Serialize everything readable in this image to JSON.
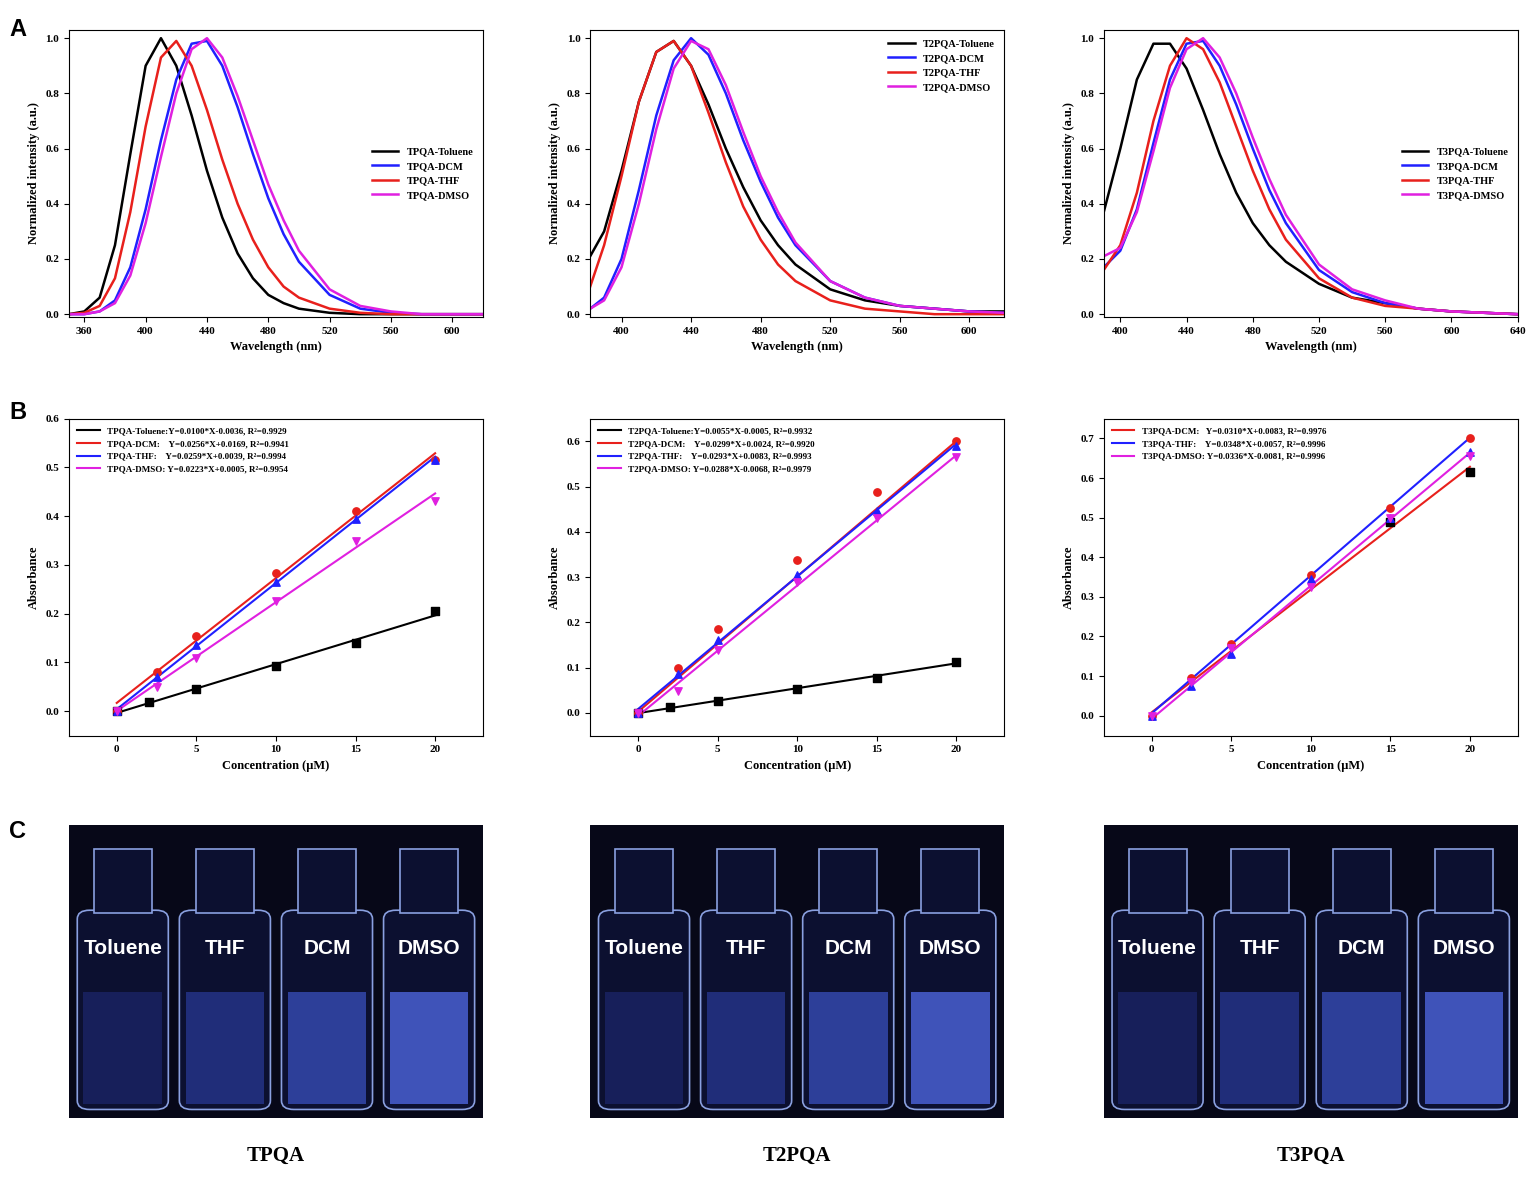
{
  "panel_labels": [
    "A",
    "B",
    "C"
  ],
  "chart_data": [
    {
      "type": "line",
      "x_label": "Wavelength (nm)",
      "y_label": "Normalized intensity (a.u.)",
      "xlim": [
        350,
        620
      ],
      "xticks": [
        360,
        400,
        440,
        480,
        520,
        560,
        600
      ],
      "ylim": [
        -0.01,
        1.03
      ],
      "yticks": [
        0.0,
        0.2,
        0.4,
        0.6,
        0.8,
        1.0
      ],
      "legend": "center right",
      "x": [
        350,
        360,
        370,
        380,
        390,
        400,
        410,
        420,
        430,
        440,
        450,
        460,
        470,
        480,
        490,
        500,
        520,
        540,
        560,
        580,
        600,
        620
      ],
      "series": [
        {
          "name": "TPQA-Toluene",
          "color": "#000000",
          "values": [
            0,
            0.01,
            0.06,
            0.25,
            0.58,
            0.9,
            1.0,
            0.9,
            0.72,
            0.52,
            0.35,
            0.22,
            0.13,
            0.07,
            0.04,
            0.02,
            0.005,
            0,
            0,
            0,
            0,
            0
          ]
        },
        {
          "name": "TPQA-DCM",
          "color": "#2020ff",
          "values": [
            0,
            0,
            0.01,
            0.05,
            0.17,
            0.38,
            0.63,
            0.85,
            0.98,
            0.99,
            0.9,
            0.75,
            0.58,
            0.42,
            0.29,
            0.19,
            0.07,
            0.02,
            0.005,
            0,
            0,
            0
          ]
        },
        {
          "name": "TPQA-THF",
          "color": "#e8201c",
          "values": [
            0,
            0.005,
            0.03,
            0.13,
            0.37,
            0.68,
            0.93,
            0.99,
            0.9,
            0.74,
            0.56,
            0.4,
            0.27,
            0.17,
            0.1,
            0.06,
            0.02,
            0.005,
            0,
            0,
            0,
            0
          ]
        },
        {
          "name": "TPQA-DMSO",
          "color": "#e020e0",
          "values": [
            0,
            0,
            0.01,
            0.04,
            0.14,
            0.33,
            0.57,
            0.8,
            0.96,
            1.0,
            0.93,
            0.79,
            0.63,
            0.47,
            0.34,
            0.23,
            0.09,
            0.03,
            0.01,
            0,
            0,
            0
          ]
        }
      ]
    },
    {
      "type": "line",
      "x_label": "Wavelength (nm)",
      "y_label": "Normalized intensity (a.u.)",
      "xlim": [
        382,
        620
      ],
      "xticks": [
        400,
        440,
        480,
        520,
        560,
        600
      ],
      "ylim": [
        -0.01,
        1.03
      ],
      "yticks": [
        0.0,
        0.2,
        0.4,
        0.6,
        0.8,
        1.0
      ],
      "legend": "upper right",
      "x": [
        382,
        390,
        400,
        410,
        420,
        430,
        440,
        450,
        460,
        470,
        480,
        490,
        500,
        520,
        540,
        560,
        580,
        600,
        620
      ],
      "series": [
        {
          "name": "T2PQA-Toluene",
          "color": "#000000",
          "values": [
            0.21,
            0.3,
            0.52,
            0.77,
            0.95,
            0.99,
            0.9,
            0.76,
            0.6,
            0.46,
            0.34,
            0.25,
            0.18,
            0.09,
            0.05,
            0.03,
            0.02,
            0.01,
            0.01
          ]
        },
        {
          "name": "T2PQA-DCM",
          "color": "#2020ff",
          "values": [
            0.02,
            0.06,
            0.2,
            0.45,
            0.72,
            0.92,
            1.0,
            0.94,
            0.8,
            0.63,
            0.48,
            0.35,
            0.25,
            0.12,
            0.06,
            0.03,
            0.02,
            0.01,
            0.005
          ]
        },
        {
          "name": "T2PQA-THF",
          "color": "#e8201c",
          "values": [
            0.1,
            0.25,
            0.5,
            0.77,
            0.95,
            0.99,
            0.9,
            0.73,
            0.55,
            0.39,
            0.27,
            0.18,
            0.12,
            0.05,
            0.02,
            0.01,
            0,
            0,
            0
          ]
        },
        {
          "name": "T2PQA-DMSO",
          "color": "#e020e0",
          "values": [
            0.02,
            0.05,
            0.17,
            0.4,
            0.67,
            0.89,
            0.99,
            0.96,
            0.83,
            0.66,
            0.5,
            0.37,
            0.26,
            0.12,
            0.06,
            0.03,
            0.02,
            0.01,
            0.005
          ]
        }
      ]
    },
    {
      "type": "line",
      "x_label": "Wavelength (nm)",
      "y_label": "Normalized intensity (a.u.)",
      "xlim": [
        390,
        640
      ],
      "xticks": [
        400,
        440,
        480,
        520,
        560,
        600,
        640
      ],
      "ylim": [
        -0.01,
        1.03
      ],
      "yticks": [
        0.0,
        0.2,
        0.4,
        0.6,
        0.8,
        1.0
      ],
      "legend": "center right",
      "x": [
        390,
        400,
        410,
        420,
        430,
        440,
        450,
        460,
        470,
        480,
        490,
        500,
        520,
        540,
        560,
        580,
        600,
        620,
        640
      ],
      "series": [
        {
          "name": "T3PQA-Toluene",
          "color": "#000000",
          "values": [
            0.37,
            0.6,
            0.85,
            0.98,
            0.98,
            0.89,
            0.74,
            0.58,
            0.44,
            0.33,
            0.25,
            0.19,
            0.11,
            0.06,
            0.04,
            0.02,
            0.01,
            0.005,
            0
          ]
        },
        {
          "name": "T3PQA-DCM",
          "color": "#2020ff",
          "values": [
            0.17,
            0.23,
            0.38,
            0.62,
            0.85,
            0.98,
            0.99,
            0.9,
            0.76,
            0.6,
            0.45,
            0.33,
            0.16,
            0.08,
            0.04,
            0.02,
            0.01,
            0.005,
            0
          ]
        },
        {
          "name": "T3PQA-THF",
          "color": "#e8201c",
          "values": [
            0.16,
            0.25,
            0.44,
            0.7,
            0.9,
            1.0,
            0.96,
            0.84,
            0.68,
            0.52,
            0.38,
            0.27,
            0.13,
            0.06,
            0.03,
            0.02,
            0.01,
            0.005,
            0
          ]
        },
        {
          "name": "T3PQA-DMSO",
          "color": "#e020e0",
          "values": [
            0.21,
            0.24,
            0.37,
            0.59,
            0.82,
            0.96,
            1.0,
            0.93,
            0.8,
            0.64,
            0.49,
            0.36,
            0.18,
            0.09,
            0.05,
            0.02,
            0.01,
            0.005,
            0
          ]
        }
      ]
    },
    {
      "type": "scatter",
      "x_label": "Concentration (μM)",
      "y_label": "Absorbance",
      "xlim": [
        -3,
        23
      ],
      "xticks": [
        0,
        5,
        10,
        15,
        20
      ],
      "ylim": [
        -0.05,
        0.6
      ],
      "yticks": [
        0.0,
        0.1,
        0.2,
        0.3,
        0.4,
        0.5,
        0.6
      ],
      "legend": "upper left",
      "series": [
        {
          "name": "TPQA-Toluene:Y=0.0100*X-0.0036, R²=0.9929",
          "color": "#000000",
          "marker": "square",
          "x": [
            0,
            2,
            5,
            10,
            15,
            20
          ],
          "values": [
            0,
            0.018,
            0.045,
            0.093,
            0.14,
            0.205
          ],
          "fit": {
            "slope": 0.01,
            "intercept": -0.0036
          }
        },
        {
          "name": "TPQA-DCM:    Y=0.0256*X+0.0169, R²=0.9941",
          "color": "#e8201c",
          "marker": "circle",
          "x": [
            0,
            2.5,
            5,
            10,
            15,
            20
          ],
          "values": [
            0,
            0.08,
            0.155,
            0.283,
            0.41,
            0.515
          ],
          "fit": {
            "slope": 0.0256,
            "intercept": 0.0169
          }
        },
        {
          "name": "TPQA-THF:    Y=0.0259*X+0.0039, R²=0.9994",
          "color": "#2020ff",
          "marker": "triangle_up",
          "x": [
            0,
            2.5,
            5,
            10,
            15,
            20
          ],
          "values": [
            0,
            0.07,
            0.135,
            0.265,
            0.395,
            0.515
          ],
          "fit": {
            "slope": 0.0259,
            "intercept": 0.0039
          }
        },
        {
          "name": "TPQA-DMSO: Y=0.0223*X+0.0005, R²=0.9954",
          "color": "#e020e0",
          "marker": "triangle_down",
          "x": [
            0,
            2.5,
            5,
            10,
            15,
            20
          ],
          "values": [
            0,
            0.05,
            0.11,
            0.225,
            0.35,
            0.43
          ],
          "fit": {
            "slope": 0.0223,
            "intercept": 0.0005
          }
        }
      ]
    },
    {
      "type": "scatter",
      "x_label": "Concentration (μM)",
      "y_label": "Absorbance",
      "xlim": [
        -3,
        23
      ],
      "xticks": [
        0,
        5,
        10,
        15,
        20
      ],
      "ylim": [
        -0.05,
        0.65
      ],
      "yticks": [
        0.0,
        0.1,
        0.2,
        0.3,
        0.4,
        0.5,
        0.6
      ],
      "legend": "upper left",
      "series": [
        {
          "name": "T2PQA-Toluene:Y=0.0055*X-0.0005, R²=0.9932",
          "color": "#000000",
          "marker": "square",
          "x": [
            0,
            2,
            5,
            10,
            15,
            20
          ],
          "values": [
            0,
            0.013,
            0.026,
            0.053,
            0.077,
            0.113
          ],
          "fit": {
            "slope": 0.0055,
            "intercept": -0.0005
          }
        },
        {
          "name": "T2PQA-DCM:    Y=0.0299*X+0.0024, R²=0.9920",
          "color": "#e8201c",
          "marker": "circle",
          "x": [
            0,
            2.5,
            5,
            10,
            15,
            20
          ],
          "values": [
            0,
            0.1,
            0.185,
            0.338,
            0.487,
            0.6
          ],
          "fit": {
            "slope": 0.0299,
            "intercept": 0.0024
          }
        },
        {
          "name": "T2PQA-THF:    Y=0.0293*X+0.0083, R²=0.9993",
          "color": "#2020ff",
          "marker": "triangle_up",
          "x": [
            0,
            2.5,
            5,
            10,
            15,
            20
          ],
          "values": [
            0,
            0.085,
            0.16,
            0.305,
            0.445,
            0.59
          ],
          "fit": {
            "slope": 0.0293,
            "intercept": 0.0083
          }
        },
        {
          "name": "T2PQA-DMSO: Y=0.0288*X-0.0068, R²=0.9979",
          "color": "#e020e0",
          "marker": "triangle_down",
          "x": [
            0,
            2.5,
            5,
            10,
            15,
            20
          ],
          "values": [
            0,
            0.048,
            0.14,
            0.29,
            0.43,
            0.565
          ],
          "fit": {
            "slope": 0.0288,
            "intercept": -0.0068
          }
        }
      ]
    },
    {
      "type": "scatter",
      "x_label": "Concentration (μM)",
      "y_label": "Absorbance",
      "xlim": [
        -3,
        23
      ],
      "xticks": [
        0,
        5,
        10,
        15,
        20
      ],
      "ylim": [
        -0.05,
        0.75
      ],
      "yticks": [
        0.0,
        0.1,
        0.2,
        0.3,
        0.4,
        0.5,
        0.6,
        0.7
      ],
      "legend": "upper left",
      "series": [
        {
          "name": null,
          "color": "#000000",
          "marker": "square",
          "x": [
            15,
            20
          ],
          "values": [
            0.49,
            0.615
          ]
        },
        {
          "name": "T3PQA-DCM:   Y=0.0310*X+0.0083, R²=0.9976",
          "color": "#e8201c",
          "marker": "circle",
          "x": [
            0,
            2.5,
            5,
            10,
            15,
            20
          ],
          "values": [
            0,
            0.095,
            0.182,
            0.355,
            0.525,
            0.7
          ],
          "fit": {
            "slope": 0.031,
            "intercept": 0.0083
          }
        },
        {
          "name": "T3PQA-THF:    Y=0.0348*X+0.0057, R²=0.9996",
          "color": "#2020ff",
          "marker": "triangle_up",
          "x": [
            0,
            2.5,
            5,
            10,
            15,
            20
          ],
          "values": [
            0,
            0.075,
            0.155,
            0.345,
            0.5,
            0.665
          ],
          "fit": {
            "slope": 0.0348,
            "intercept": 0.0057
          }
        },
        {
          "name": "T3PQA-DMSO: Y=0.0336*X-0.0081, R²=0.9996",
          "color": "#e020e0",
          "marker": "triangle_down",
          "x": [
            0,
            2.5,
            5,
            10,
            15,
            20
          ],
          "values": [
            0,
            0.085,
            0.17,
            0.325,
            0.5,
            0.655
          ],
          "fit": {
            "slope": 0.0336,
            "intercept": -0.0081
          }
        }
      ]
    }
  ],
  "photos": [
    {
      "caption": "TPQA",
      "labels": [
        "Toluene",
        "THF",
        "DCM",
        "DMSO"
      ]
    },
    {
      "caption": "T2PQA",
      "labels": [
        "Toluene",
        "THF",
        "DCM",
        "DMSO"
      ]
    },
    {
      "caption": "T3PQA",
      "labels": [
        "Toluene",
        "THF",
        "DCM",
        "DMSO"
      ]
    }
  ]
}
